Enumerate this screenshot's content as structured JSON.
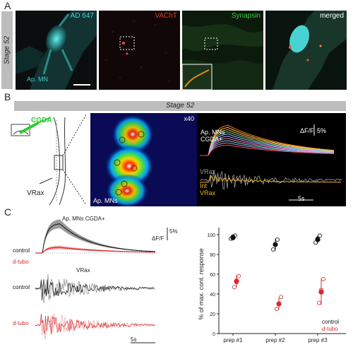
{
  "panel_a": {
    "letter": "A",
    "stage_label": "Stage 52",
    "tiles": [
      {
        "label": "AD 647",
        "color": "#3fd6d6"
      },
      {
        "label": "VAChT",
        "color": "#e03a2a"
      },
      {
        "label": "Synapsin",
        "color": "#3ec43e"
      },
      {
        "label": "merged",
        "color": "#ffffff"
      }
    ],
    "ap_mn_label": "Ap. MN"
  },
  "panel_b": {
    "letter": "B",
    "stage_label": "Stage 52",
    "cgda_label": "CGDA",
    "vrax_label": "VRax",
    "zoom_label": "x40",
    "ap_mns_label": "Ap. MNs",
    "traces_title_line1": "Ap. MNs",
    "traces_title_line2": "CGDA+",
    "df_label": "ΔF/F",
    "df_scale": "5%",
    "vrax_trace_label": "VRax",
    "int_label": "Int",
    "vrax_int_label": "VRax",
    "time_scale": "5s",
    "colors": {
      "cgda": "#2ecc2e",
      "int": "#f0b51e"
    }
  },
  "panel_c": {
    "letter": "C",
    "title": "Ap. MNs CGDA+",
    "df_label": "ΔF/F",
    "df_scale": "5%",
    "control_label": "control",
    "dtubo_label": "d-tubo",
    "vrax_label": "VRax",
    "time_scale": "5s",
    "colors": {
      "control": "#111111",
      "dtubo": "#d42a2a"
    }
  },
  "chart_data": {
    "type": "scatter",
    "ylabel": "% of max. cont. response",
    "ylim": [
      0,
      100
    ],
    "yticks": [
      0,
      20,
      40,
      60,
      80,
      100
    ],
    "categories": [
      "prep #1",
      "prep #2",
      "prep #3"
    ],
    "series": [
      {
        "name": "control",
        "color": "#111111",
        "means": [
          97,
          90,
          95
        ],
        "err": [
          3,
          6,
          4
        ],
        "points": [
          [
            96,
            98,
            99
          ],
          [
            85,
            90,
            95
          ],
          [
            92,
            96,
            99
          ]
        ]
      },
      {
        "name": "d-tubo",
        "color": "#d42a2a",
        "means": [
          53,
          30,
          42
        ],
        "err": [
          6,
          6,
          13
        ],
        "points": [
          [
            47,
            52,
            58
          ],
          [
            25,
            30,
            37
          ],
          [
            31,
            44,
            55
          ]
        ]
      }
    ],
    "legend": [
      "control",
      "d-tubo"
    ]
  }
}
